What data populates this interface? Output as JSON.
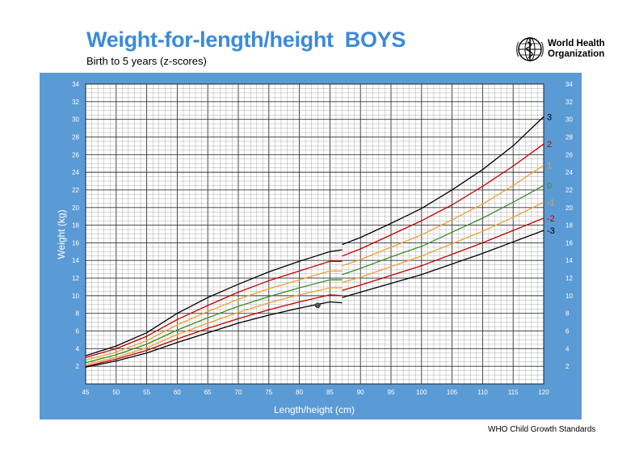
{
  "header": {
    "title": "Weight-for-length/height",
    "sex": "BOYS",
    "subtitle": "Birth to 5 years (z-scores)",
    "org_line1": "World Health",
    "org_line2": "Organization",
    "logo_icon": "who-emblem-icon"
  },
  "footer": {
    "text": "WHO Child Growth Standards"
  },
  "colors": {
    "title": "#3c8ad9",
    "panel": "#5b9bd5",
    "grid_minor": "#8a8a8a",
    "grid_major": "#333333",
    "sd3": "#000000",
    "sd2": "#c00000",
    "sd1": "#f0a030",
    "sd0": "#3a8a2a"
  },
  "chart_data": {
    "type": "line",
    "title": "Weight-for-length/height BOYS",
    "xlabel": "Length/height (cm)",
    "ylabel": "Weight (kg)",
    "xlim": [
      45,
      120
    ],
    "ylim": [
      0,
      34
    ],
    "x_ticks": [
      45,
      50,
      55,
      60,
      65,
      70,
      75,
      80,
      85,
      90,
      95,
      100,
      105,
      110,
      115,
      120
    ],
    "y_ticks": [
      2,
      4,
      6,
      8,
      10,
      12,
      14,
      16,
      18,
      20,
      22,
      24,
      26,
      28,
      30,
      32,
      34
    ],
    "grid": true,
    "x": [
      45,
      50,
      55,
      60,
      65,
      70,
      75,
      80,
      85,
      87,
      90,
      95,
      100,
      105,
      110,
      115,
      120
    ],
    "series": [
      {
        "name": "3",
        "color": "#000000",
        "values": [
          3.2,
          4.3,
          5.8,
          8.0,
          9.8,
          11.3,
          12.7,
          13.9,
          15.0,
          15.8,
          16.6,
          18.2,
          19.9,
          22.0,
          24.3,
          27.0,
          30.3
        ]
      },
      {
        "name": "2",
        "color": "#c00000",
        "values": [
          3.0,
          4.0,
          5.4,
          7.3,
          8.9,
          10.4,
          11.7,
          12.8,
          13.9,
          14.5,
          15.3,
          16.9,
          18.5,
          20.3,
          22.4,
          24.7,
          27.2
        ]
      },
      {
        "name": "1",
        "color": "#f0a030",
        "values": [
          2.7,
          3.6,
          4.9,
          6.7,
          8.2,
          9.6,
          10.8,
          11.8,
          12.8,
          13.4,
          14.1,
          15.5,
          16.9,
          18.6,
          20.4,
          22.5,
          24.8
        ]
      },
      {
        "name": "0",
        "color": "#3a8a2a",
        "values": [
          2.4,
          3.3,
          4.5,
          6.1,
          7.5,
          8.8,
          9.9,
          10.9,
          11.8,
          12.4,
          13.1,
          14.4,
          15.6,
          17.2,
          18.8,
          20.6,
          22.5
        ]
      },
      {
        "name": "-1",
        "color": "#f0a030",
        "values": [
          2.2,
          3.0,
          4.1,
          5.6,
          6.9,
          8.1,
          9.2,
          10.1,
          10.9,
          11.5,
          12.1,
          13.3,
          14.5,
          15.9,
          17.3,
          18.9,
          20.6
        ]
      },
      {
        "name": "-2",
        "color": "#c00000",
        "values": [
          2.0,
          2.8,
          3.8,
          5.1,
          6.3,
          7.4,
          8.4,
          9.3,
          10.1,
          10.6,
          11.2,
          12.3,
          13.4,
          14.7,
          16.0,
          17.4,
          18.8
        ]
      },
      {
        "name": "-3",
        "color": "#000000",
        "values": [
          1.9,
          2.6,
          3.5,
          4.7,
          5.8,
          6.9,
          7.8,
          8.6,
          9.3,
          9.8,
          10.4,
          11.4,
          12.4,
          13.6,
          14.8,
          16.1,
          17.4
        ]
      }
    ],
    "points": [
      {
        "x": 83,
        "y": 8.9
      }
    ]
  }
}
